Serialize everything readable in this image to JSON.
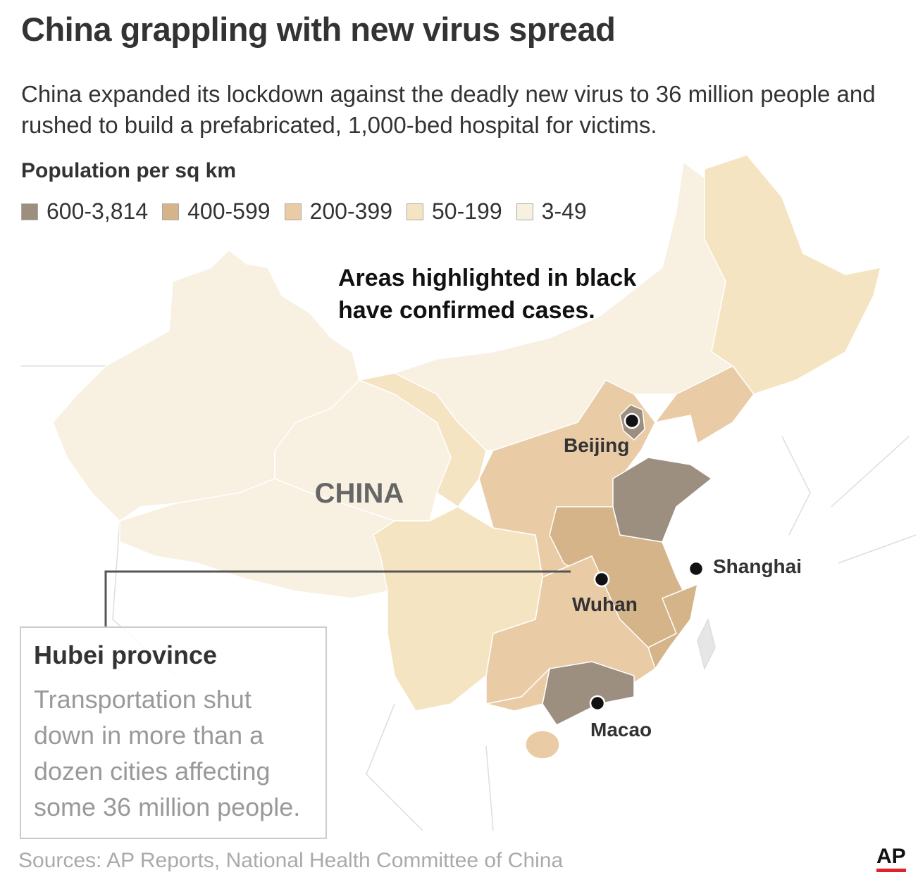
{
  "header": {
    "title": "China grappling with new virus spread",
    "subtitle": "China expanded its lockdown against the deadly new virus to 36 million people and rushed to build a prefabricated, 1,000-bed hospital for victims."
  },
  "legend": {
    "title": "Population per sq km",
    "items": [
      {
        "label": "600-3,814",
        "color": "#9d8f80"
      },
      {
        "label": "400-599",
        "color": "#d5b489"
      },
      {
        "label": "200-399",
        "color": "#e9cba6"
      },
      {
        "label": "50-199",
        "color": "#f5e4c1"
      },
      {
        "label": "3-49",
        "color": "#f8f0e1"
      }
    ]
  },
  "annotation": {
    "lines": [
      "Areas highlighted in black",
      "have confirmed cases."
    ]
  },
  "map": {
    "country_label": "CHINA",
    "cities": [
      {
        "name": "Beijing"
      },
      {
        "name": "Shanghai"
      },
      {
        "name": "Wuhan"
      },
      {
        "name": "Macao"
      }
    ]
  },
  "callout": {
    "title": "Hubei province",
    "lines": [
      "Transportation shut",
      "down in more than a",
      "dozen cities affecting",
      "some 36 million people."
    ]
  },
  "footer": {
    "source": "Sources: AP Reports, National Health Committee of China",
    "logo": "AP"
  }
}
